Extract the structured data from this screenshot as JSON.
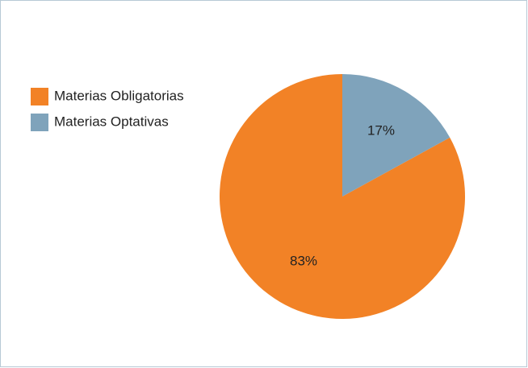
{
  "chart_data": {
    "type": "pie",
    "categories": [
      "Materias Obligatorias",
      "Materias Optativas"
    ],
    "values": [
      83,
      17
    ],
    "value_labels": [
      "83%",
      "17%"
    ],
    "colors": [
      "#f28226",
      "#7fa3bb"
    ],
    "legend": "left"
  }
}
